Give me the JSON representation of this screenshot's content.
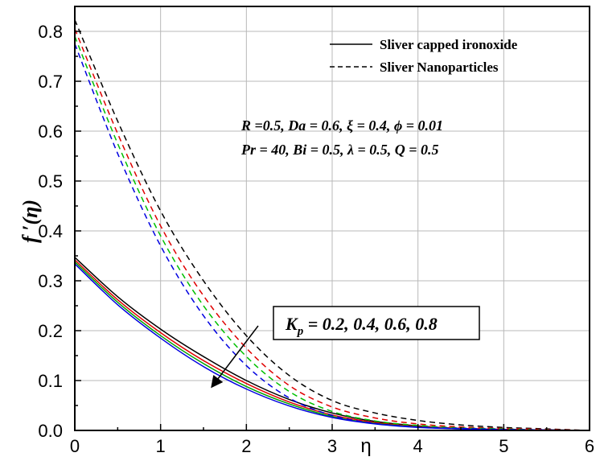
{
  "chart_data": {
    "type": "line",
    "xlabel": "η",
    "ylabel": "f ′(η)",
    "xlim": [
      0,
      6
    ],
    "ylim": [
      0,
      0.85
    ],
    "x_ticks": [
      "0",
      "1",
      "2",
      "3",
      "4",
      "5",
      "6"
    ],
    "y_ticks": [
      "0.0",
      "0.1",
      "0.2",
      "0.3",
      "0.4",
      "0.5",
      "0.6",
      "0.7",
      "0.8"
    ],
    "grid": true,
    "legend_position": "top-right",
    "legend": [
      {
        "label": "Sliver capped ironoxide",
        "style": "solid"
      },
      {
        "label": "Sliver Nanoparticles",
        "style": "dashed"
      }
    ],
    "annotations": {
      "params_line1": "R =0.5, Da = 0.6, ξ = 0.4, ϕ = 0.01",
      "params_line2": "Pr = 40, Bi = 0.5, λ = 0.5, Q = 0.5",
      "kp_symbol": "K",
      "kp_subscript": "p",
      "kp_values": " = 0.2, 0.4, 0.6, 0.8"
    },
    "x": [
      0,
      0.5,
      1,
      1.5,
      2,
      2.5,
      3,
      3.5,
      4,
      4.5,
      5,
      5.5,
      6
    ],
    "series": [
      {
        "group": "solid",
        "color": "#000000",
        "values": [
          0.347,
          0.268,
          0.203,
          0.148,
          0.1,
          0.062,
          0.035,
          0.018,
          0.009,
          0.004,
          0.002,
          0.001,
          0.0
        ]
      },
      {
        "group": "solid",
        "color": "#e00000",
        "values": [
          0.342,
          0.262,
          0.196,
          0.14,
          0.094,
          0.057,
          0.031,
          0.016,
          0.008,
          0.004,
          0.002,
          0.001,
          0.0
        ]
      },
      {
        "group": "solid",
        "color": "#00a000",
        "values": [
          0.338,
          0.257,
          0.19,
          0.134,
          0.088,
          0.053,
          0.028,
          0.014,
          0.007,
          0.003,
          0.001,
          0.0,
          0.0
        ]
      },
      {
        "group": "solid",
        "color": "#0000e0",
        "values": [
          0.334,
          0.252,
          0.185,
          0.128,
          0.083,
          0.049,
          0.026,
          0.013,
          0.006,
          0.003,
          0.001,
          0.0,
          0.0
        ]
      },
      {
        "group": "dashed",
        "color": "#000000",
        "values": [
          0.823,
          0.62,
          0.44,
          0.3,
          0.19,
          0.11,
          0.06,
          0.035,
          0.02,
          0.011,
          0.006,
          0.003,
          0.0
        ]
      },
      {
        "group": "dashed",
        "color": "#e00000",
        "values": [
          0.805,
          0.595,
          0.41,
          0.27,
          0.165,
          0.09,
          0.047,
          0.025,
          0.013,
          0.007,
          0.004,
          0.002,
          0.0
        ]
      },
      {
        "group": "dashed",
        "color": "#00c000",
        "values": [
          0.79,
          0.575,
          0.39,
          0.25,
          0.148,
          0.078,
          0.038,
          0.019,
          0.01,
          0.005,
          0.003,
          0.001,
          0.0
        ]
      },
      {
        "group": "dashed",
        "color": "#0000e0",
        "values": [
          0.775,
          0.555,
          0.37,
          0.23,
          0.13,
          0.065,
          0.03,
          0.014,
          0.007,
          0.004,
          0.002,
          0.001,
          0.0
        ]
      }
    ]
  }
}
